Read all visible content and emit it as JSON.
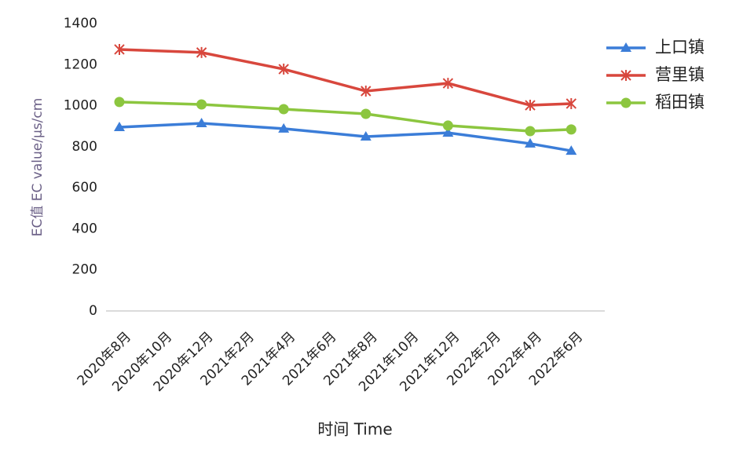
{
  "chart_data": {
    "type": "line",
    "y_label": "EC值 EC value/μs/cm",
    "x_label": "时间 Time",
    "categories": [
      "2020年8月",
      "2020年10月",
      "2020年12月",
      "2021年2月",
      "2021年4月",
      "2021年6月",
      "2021年8月",
      "2021年10月",
      "2021年12月",
      "2022年2月",
      "2022年4月",
      "2022年6月"
    ],
    "x": [
      "2020年8月",
      "2020年12月",
      "2021年4月",
      "2021年8月",
      "2021年12月",
      "2022年4月",
      "2022年6月"
    ],
    "series": [
      {
        "name": "上口镇",
        "color": "#3b7dd8",
        "marker": "triangle",
        "values": [
          895,
          914,
          888,
          849,
          868,
          815,
          780
        ]
      },
      {
        "name": "营里镇",
        "color": "#d8473d",
        "marker": "cross",
        "values": [
          1274,
          1259,
          1178,
          1071,
          1109,
          1002,
          1010
        ]
      },
      {
        "name": "稻田镇",
        "color": "#8cc63f",
        "marker": "circle",
        "values": [
          1018,
          1006,
          983,
          960,
          903,
          876,
          884
        ]
      }
    ],
    "ylim": [
      0,
      1400
    ],
    "yticks": [
      0,
      200,
      400,
      600,
      800,
      1000,
      1200,
      1400
    ],
    "grid": false,
    "legend": "top-right"
  }
}
